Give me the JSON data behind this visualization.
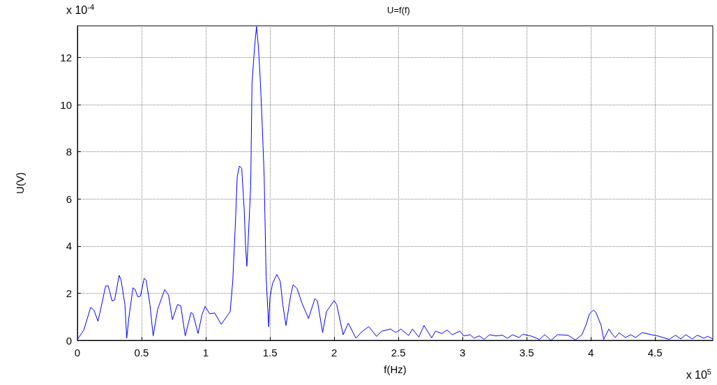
{
  "chart_data": {
    "type": "line",
    "title": "U=f(f)",
    "xlabel": "f(Hz)",
    "ylabel": "U(V)",
    "annotations": [
      "x 10$^{-4}$",
      "x 10$^{5}$"
    ],
    "xlim": [
      0,
      4.95
    ],
    "xticks": [
      0,
      0.5,
      1,
      1.5,
      2,
      2.5,
      3,
      3.5,
      4,
      4.5
    ],
    "ylim": [
      0,
      13.35
    ],
    "yticks": [
      0,
      2,
      4,
      6,
      8,
      10,
      12
    ],
    "grid": true,
    "marker": "none",
    "line_style": "solid",
    "series": [
      {
        "color": "#0000ff",
        "x": [
          0,
          0.05,
          0.103,
          0.13,
          0.16,
          0.185,
          0.22,
          0.24,
          0.27,
          0.29,
          0.325,
          0.34,
          0.37,
          0.384,
          0.4,
          0.433,
          0.45,
          0.47,
          0.49,
          0.52,
          0.535,
          0.565,
          0.59,
          0.625,
          0.68,
          0.71,
          0.74,
          0.78,
          0.805,
          0.84,
          0.885,
          0.9,
          0.94,
          0.97,
          0.995,
          1.03,
          1.07,
          1.12,
          1.19,
          1.21,
          1.23,
          1.245,
          1.262,
          1.28,
          1.3,
          1.31,
          1.32,
          1.33,
          1.35,
          1.36,
          1.38,
          1.395,
          1.41,
          1.425,
          1.44,
          1.455,
          1.47,
          1.49,
          1.5,
          1.52,
          1.553,
          1.58,
          1.6,
          1.625,
          1.66,
          1.68,
          1.71,
          1.75,
          1.8,
          1.85,
          1.87,
          1.91,
          1.94,
          2.0,
          2.02,
          2.07,
          2.11,
          2.17,
          2.22,
          2.27,
          2.33,
          2.37,
          2.44,
          2.48,
          2.52,
          2.58,
          2.61,
          2.66,
          2.7,
          2.76,
          2.79,
          2.84,
          2.88,
          2.92,
          2.98,
          3.01,
          3.06,
          3.09,
          3.13,
          3.17,
          3.21,
          3.26,
          3.31,
          3.35,
          3.39,
          3.44,
          3.47,
          3.53,
          3.6,
          3.64,
          3.69,
          3.74,
          3.82,
          3.88,
          3.93,
          3.96,
          3.99,
          4.02,
          4.04,
          4.08,
          4.1,
          4.14,
          4.17,
          4.19,
          4.22,
          4.27,
          4.31,
          4.35,
          4.4,
          4.47,
          4.52,
          4.61,
          4.66,
          4.7,
          4.74,
          4.79,
          4.83,
          4.88,
          4.91,
          4.95
        ],
        "values": [
          0.04,
          0.44,
          1.4,
          1.27,
          0.81,
          1.42,
          2.31,
          2.31,
          1.67,
          1.72,
          2.76,
          2.56,
          1.52,
          0.09,
          0.93,
          2.23,
          2.16,
          1.85,
          1.87,
          2.63,
          2.56,
          1.52,
          0.19,
          1.32,
          2.16,
          1.92,
          0.88,
          1.52,
          1.47,
          0.19,
          1.18,
          1.13,
          0.29,
          1.08,
          1.44,
          1.13,
          1.16,
          0.68,
          1.22,
          2.51,
          4.88,
          6.95,
          7.4,
          7.3,
          5.47,
          3.99,
          3.15,
          4.19,
          6.56,
          10.9,
          12.43,
          13.32,
          12.48,
          11.0,
          9.13,
          6.95,
          2.71,
          0.58,
          1.82,
          2.41,
          2.8,
          2.51,
          1.52,
          0.63,
          1.87,
          2.36,
          2.21,
          1.57,
          0.93,
          1.77,
          1.67,
          0.33,
          1.22,
          1.69,
          1.52,
          0.24,
          0.73,
          0.09,
          0.39,
          0.58,
          0.17,
          0.39,
          0.48,
          0.33,
          0.48,
          0.21,
          0.48,
          0.14,
          0.63,
          0.11,
          0.39,
          0.29,
          0.44,
          0.24,
          0.39,
          0.19,
          0.24,
          0.09,
          0.19,
          0.04,
          0.24,
          0.19,
          0.22,
          0.09,
          0.24,
          0.12,
          0.26,
          0.19,
          0.04,
          0.24,
          0.0,
          0.24,
          0.22,
          0.02,
          0.24,
          0.63,
          1.13,
          1.29,
          1.18,
          0.63,
          0.04,
          0.48,
          0.24,
          0.12,
          0.32,
          0.12,
          0.24,
          0.12,
          0.33,
          0.24,
          0.19,
          0.04,
          0.22,
          0.06,
          0.24,
          0.06,
          0.22,
          0.09,
          0.17,
          0.06
        ]
      }
    ]
  }
}
